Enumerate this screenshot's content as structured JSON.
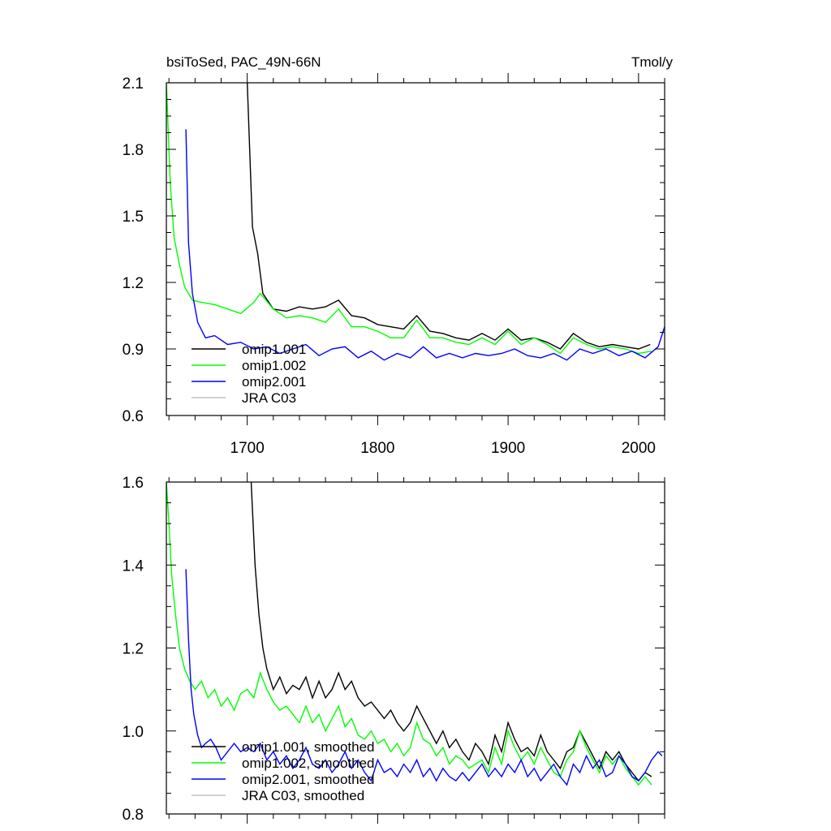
{
  "header": {
    "title_left": "bsiToSed, PAC_49N-66N",
    "units": "Tmol/y"
  },
  "colors": {
    "omip1_001": "#000000",
    "omip1_002": "#00ff00",
    "omip2_001": "#0000ff",
    "jra_c03": "#c0c0c0"
  },
  "chart_data": [
    {
      "type": "line",
      "title": "bsiToSed, PAC_49N-66N",
      "units": "Tmol/y",
      "xlim": [
        1638,
        2020
      ],
      "ylim": [
        0.6,
        2.1
      ],
      "xticks": [
        1700,
        1800,
        1900,
        2000
      ],
      "xtick_labels": [
        "1700",
        "1800",
        "1900",
        "2000"
      ],
      "yticks": [
        0.6,
        0.9,
        1.2,
        1.5,
        1.8,
        2.1
      ],
      "ytick_labels": [
        "0.6",
        "0.9",
        "1.2",
        "1.5",
        "1.8",
        "2.1"
      ],
      "legend_position": "lower-left",
      "legend": [
        "omip1.001",
        "omip1.002",
        "omip2.001",
        "JRA C03"
      ],
      "series": [
        {
          "name": "omip1.001",
          "color": "#000000",
          "x": [
            1700,
            1704,
            1708,
            1712,
            1720,
            1730,
            1740,
            1750,
            1760,
            1770,
            1780,
            1790,
            1800,
            1810,
            1820,
            1830,
            1840,
            1850,
            1860,
            1870,
            1880,
            1890,
            1900,
            1910,
            1920,
            1930,
            1940,
            1950,
            1960,
            1970,
            1980,
            1990,
            2000,
            2009
          ],
          "y": [
            2.1,
            1.45,
            1.33,
            1.15,
            1.08,
            1.07,
            1.09,
            1.08,
            1.09,
            1.12,
            1.05,
            1.04,
            1.01,
            1.0,
            0.99,
            1.05,
            0.98,
            0.97,
            0.95,
            0.94,
            0.97,
            0.94,
            0.99,
            0.94,
            0.95,
            0.93,
            0.9,
            0.97,
            0.93,
            0.91,
            0.92,
            0.91,
            0.9,
            0.92
          ]
        },
        {
          "name": "omip1.002",
          "color": "#00ff00",
          "x": [
            1638,
            1641,
            1644,
            1648,
            1652,
            1658,
            1665,
            1675,
            1685,
            1695,
            1705,
            1710,
            1720,
            1730,
            1740,
            1750,
            1760,
            1770,
            1780,
            1790,
            1800,
            1810,
            1820,
            1830,
            1840,
            1850,
            1860,
            1870,
            1880,
            1890,
            1900,
            1910,
            1920,
            1930,
            1940,
            1950,
            1960,
            1970,
            1980,
            1990,
            2000,
            2010
          ],
          "y": [
            2.1,
            1.65,
            1.4,
            1.28,
            1.18,
            1.12,
            1.11,
            1.1,
            1.08,
            1.06,
            1.11,
            1.15,
            1.08,
            1.04,
            1.05,
            1.04,
            1.02,
            1.08,
            1.0,
            1.0,
            0.98,
            0.95,
            0.95,
            1.03,
            0.95,
            0.95,
            0.93,
            0.92,
            0.95,
            0.92,
            0.98,
            0.92,
            0.95,
            0.92,
            0.88,
            0.95,
            0.92,
            0.9,
            0.91,
            0.9,
            0.88,
            0.89
          ]
        },
        {
          "name": "omip2.001",
          "color": "#0000ff",
          "x": [
            1653,
            1655,
            1658,
            1662,
            1668,
            1675,
            1685,
            1695,
            1705,
            1715,
            1725,
            1735,
            1745,
            1755,
            1765,
            1775,
            1785,
            1795,
            1805,
            1815,
            1825,
            1835,
            1845,
            1855,
            1865,
            1875,
            1885,
            1895,
            1905,
            1915,
            1925,
            1935,
            1945,
            1955,
            1965,
            1975,
            1985,
            1995,
            2005,
            2015,
            2020
          ],
          "y": [
            1.89,
            1.38,
            1.15,
            1.02,
            0.95,
            0.96,
            0.92,
            0.93,
            0.9,
            0.91,
            0.88,
            0.9,
            0.92,
            0.87,
            0.9,
            0.91,
            0.86,
            0.89,
            0.85,
            0.88,
            0.86,
            0.91,
            0.86,
            0.88,
            0.86,
            0.88,
            0.87,
            0.88,
            0.9,
            0.87,
            0.86,
            0.88,
            0.85,
            0.9,
            0.88,
            0.9,
            0.87,
            0.89,
            0.86,
            0.91,
            1.0
          ]
        },
        {
          "name": "JRA C03",
          "color": "#c0c0c0",
          "x": [],
          "y": []
        }
      ]
    },
    {
      "type": "line",
      "xlim": [
        1638,
        2020
      ],
      "ylim": [
        0.8,
        1.6
      ],
      "yticks": [
        0.8,
        1.0,
        1.2,
        1.4,
        1.6
      ],
      "ytick_labels": [
        "0.8",
        "1.0",
        "1.2",
        "1.4",
        "1.6"
      ],
      "legend_position": "lower-left",
      "legend": [
        "omip1.001, smoothed",
        "omip1.002, smoothed",
        "omip2.001, smoothed",
        "JRA C03, smoothed"
      ],
      "series": [
        {
          "name": "omip1.001, smoothed",
          "color": "#000000",
          "x": [
            1703,
            1706,
            1709,
            1712,
            1715,
            1720,
            1725,
            1730,
            1735,
            1740,
            1745,
            1750,
            1755,
            1760,
            1765,
            1770,
            1775,
            1780,
            1785,
            1790,
            1795,
            1800,
            1805,
            1810,
            1815,
            1820,
            1825,
            1830,
            1835,
            1840,
            1845,
            1850,
            1855,
            1860,
            1865,
            1870,
            1875,
            1880,
            1885,
            1890,
            1895,
            1900,
            1905,
            1910,
            1915,
            1920,
            1925,
            1930,
            1935,
            1940,
            1945,
            1950,
            1955,
            1960,
            1965,
            1970,
            1975,
            1980,
            1985,
            1990,
            1995,
            2000,
            2005,
            2010
          ],
          "y": [
            1.6,
            1.4,
            1.28,
            1.2,
            1.15,
            1.1,
            1.13,
            1.09,
            1.11,
            1.1,
            1.13,
            1.08,
            1.12,
            1.08,
            1.1,
            1.14,
            1.1,
            1.12,
            1.08,
            1.06,
            1.07,
            1.05,
            1.03,
            1.05,
            1.02,
            1.0,
            1.02,
            1.06,
            1.03,
            1.0,
            0.97,
            1.0,
            0.96,
            0.98,
            0.95,
            0.93,
            0.97,
            0.95,
            0.92,
            0.99,
            0.95,
            1.02,
            0.98,
            0.95,
            0.96,
            0.94,
            0.99,
            0.95,
            0.93,
            0.91,
            0.95,
            0.96,
            1.0,
            0.97,
            0.94,
            0.91,
            0.95,
            0.93,
            0.95,
            0.92,
            0.9,
            0.88,
            0.9,
            0.89
          ]
        },
        {
          "name": "omip1.002, smoothed",
          "color": "#00ff00",
          "x": [
            1638,
            1640,
            1642,
            1645,
            1648,
            1652,
            1656,
            1660,
            1665,
            1670,
            1675,
            1680,
            1685,
            1690,
            1695,
            1700,
            1705,
            1710,
            1715,
            1720,
            1725,
            1730,
            1735,
            1740,
            1745,
            1750,
            1755,
            1760,
            1765,
            1770,
            1775,
            1780,
            1785,
            1790,
            1795,
            1800,
            1805,
            1810,
            1815,
            1820,
            1825,
            1830,
            1835,
            1840,
            1845,
            1850,
            1855,
            1860,
            1865,
            1870,
            1875,
            1880,
            1885,
            1890,
            1895,
            1900,
            1905,
            1910,
            1915,
            1920,
            1925,
            1930,
            1935,
            1940,
            1945,
            1950,
            1955,
            1960,
            1965,
            1970,
            1975,
            1980,
            1985,
            1990,
            1995,
            2000,
            2005,
            2010
          ],
          "y": [
            1.6,
            1.5,
            1.38,
            1.28,
            1.2,
            1.15,
            1.12,
            1.1,
            1.12,
            1.08,
            1.1,
            1.06,
            1.08,
            1.05,
            1.09,
            1.1,
            1.08,
            1.14,
            1.1,
            1.07,
            1.05,
            1.06,
            1.04,
            1.02,
            1.06,
            1.02,
            1.04,
            1.0,
            1.03,
            1.06,
            1.01,
            1.03,
            0.99,
            0.98,
            1.0,
            0.97,
            0.98,
            0.95,
            0.97,
            0.94,
            0.96,
            1.02,
            0.98,
            0.97,
            0.94,
            0.96,
            0.92,
            0.94,
            0.93,
            0.91,
            0.92,
            0.93,
            0.9,
            0.96,
            0.92,
            1.0,
            0.96,
            0.93,
            0.95,
            0.92,
            0.96,
            0.93,
            0.9,
            0.89,
            0.93,
            0.95,
            1.0,
            0.96,
            0.93,
            0.9,
            0.94,
            0.92,
            0.94,
            0.91,
            0.89,
            0.87,
            0.89,
            0.87
          ]
        },
        {
          "name": "omip2.001, smoothed",
          "color": "#0000ff",
          "x": [
            1653,
            1655,
            1657,
            1659,
            1662,
            1665,
            1668,
            1672,
            1676,
            1680,
            1685,
            1690,
            1695,
            1700,
            1705,
            1710,
            1715,
            1720,
            1725,
            1730,
            1735,
            1740,
            1745,
            1750,
            1755,
            1760,
            1765,
            1770,
            1775,
            1780,
            1785,
            1790,
            1795,
            1800,
            1805,
            1810,
            1815,
            1820,
            1825,
            1830,
            1835,
            1840,
            1845,
            1850,
            1855,
            1860,
            1865,
            1870,
            1875,
            1880,
            1885,
            1890,
            1895,
            1900,
            1905,
            1910,
            1915,
            1920,
            1925,
            1930,
            1935,
            1940,
            1945,
            1950,
            1955,
            1960,
            1965,
            1970,
            1975,
            1980,
            1985,
            1990,
            1995,
            2000,
            2005,
            2010,
            2015,
            2018
          ],
          "y": [
            1.39,
            1.22,
            1.1,
            1.04,
            0.99,
            0.96,
            0.97,
            0.98,
            0.96,
            0.93,
            0.95,
            0.97,
            0.95,
            0.96,
            0.95,
            0.97,
            0.93,
            0.95,
            0.92,
            0.94,
            0.91,
            0.93,
            0.96,
            0.92,
            0.91,
            0.93,
            0.9,
            0.92,
            0.95,
            0.91,
            0.93,
            0.9,
            0.88,
            0.93,
            0.9,
            0.91,
            0.89,
            0.92,
            0.9,
            0.93,
            0.89,
            0.91,
            0.88,
            0.91,
            0.89,
            0.88,
            0.9,
            0.88,
            0.9,
            0.92,
            0.89,
            0.91,
            0.89,
            0.92,
            0.9,
            0.93,
            0.89,
            0.91,
            0.88,
            0.9,
            0.92,
            0.89,
            0.87,
            0.92,
            0.9,
            0.94,
            0.91,
            0.93,
            0.89,
            0.9,
            0.94,
            0.92,
            0.89,
            0.88,
            0.9,
            0.93,
            0.95,
            0.94
          ]
        },
        {
          "name": "JRA C03, smoothed",
          "color": "#c0c0c0",
          "x": [],
          "y": []
        }
      ]
    }
  ]
}
